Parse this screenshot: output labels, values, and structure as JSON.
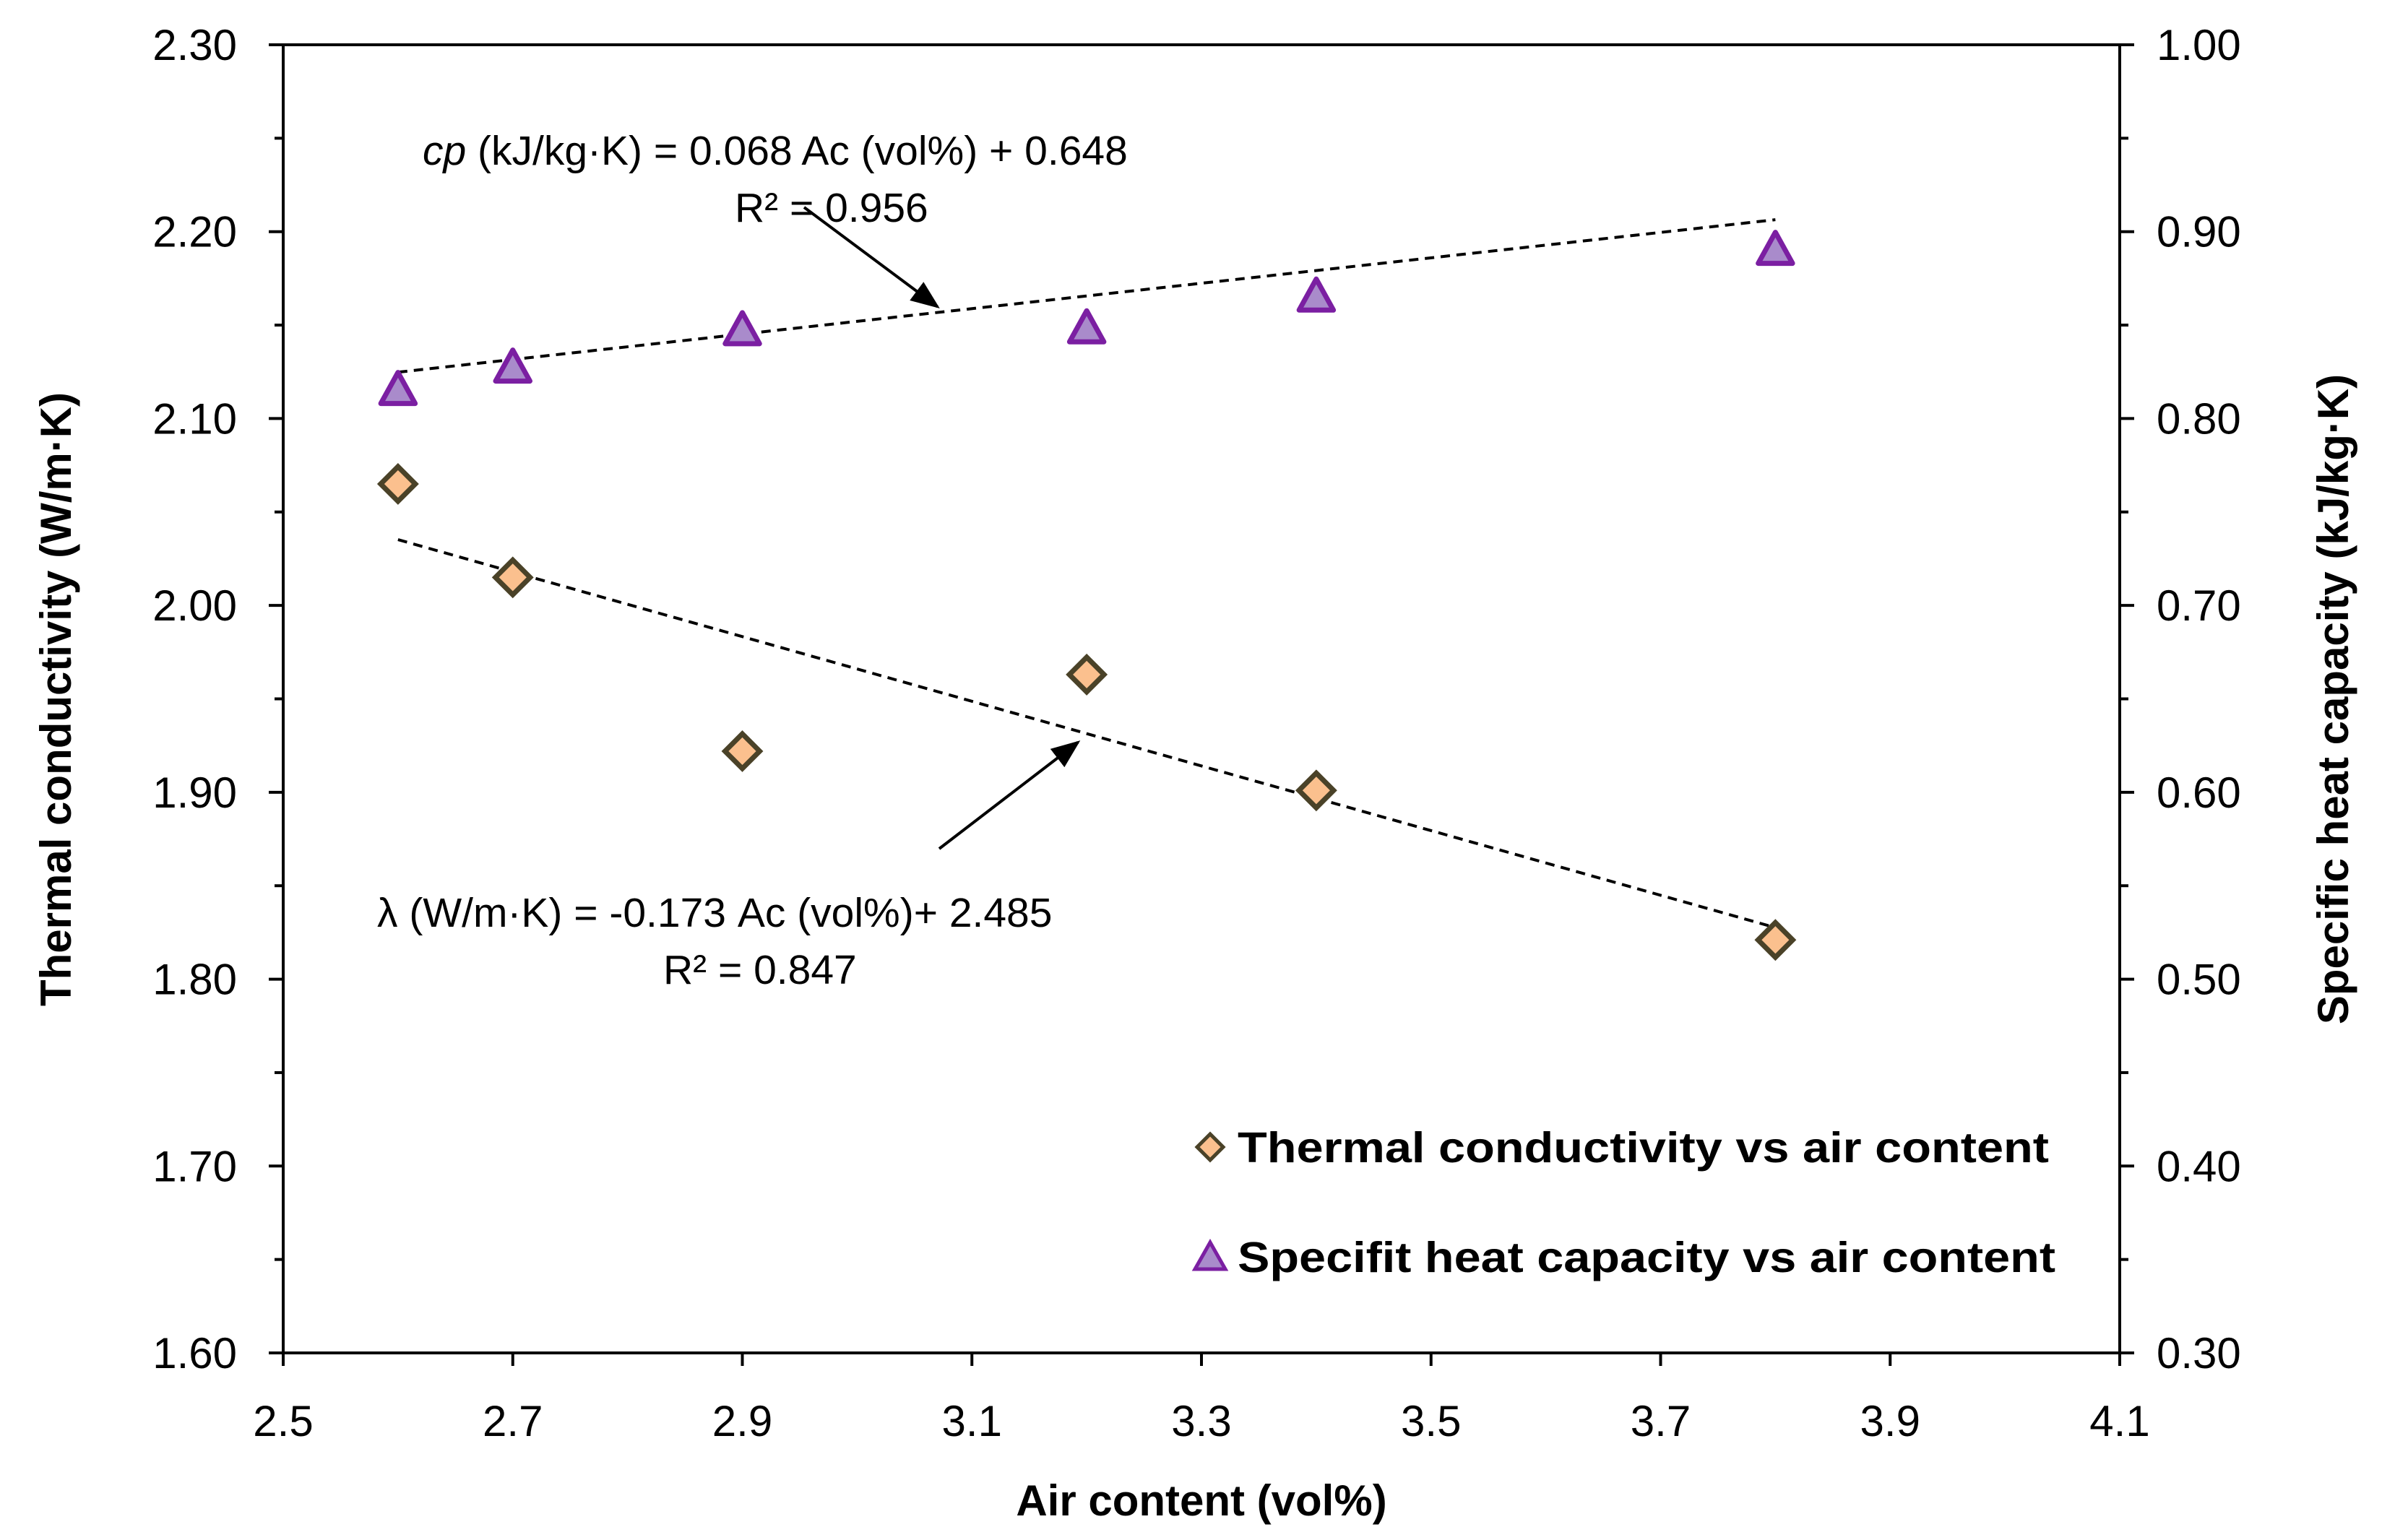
{
  "chart_data": {
    "type": "scatter",
    "xlabel": "Air content  (vol%)",
    "ylabel_left": "Thermal conductivity  (W/m·K)",
    "ylabel_right": "Specific heat capacity  (kJ/kg·K)",
    "xlim": [
      2.5,
      4.1
    ],
    "ylim_left": [
      1.6,
      2.3
    ],
    "ylim_right": [
      0.3,
      1.0
    ],
    "x_ticks": [
      "2.5",
      "2.7",
      "2.9",
      "3.1",
      "3.3",
      "3.5",
      "3.7",
      "3.9",
      "4.1"
    ],
    "y_ticks_left": [
      "1.60",
      "1.70",
      "1.80",
      "1.90",
      "2.00",
      "2.10",
      "2.20",
      "2.30"
    ],
    "y_ticks_right": [
      "0.30",
      "0.40",
      "0.50",
      "0.60",
      "0.70",
      "0.80",
      "0.90",
      "1.00"
    ],
    "series": [
      {
        "name": "Thermal conductivity  vs air content",
        "axis": "left",
        "marker": "diamond",
        "fill": "#FBC08E",
        "stroke": "#4A4228",
        "x": [
          2.6,
          2.7,
          2.9,
          3.2,
          3.4,
          3.8
        ],
        "y": [
          2.065,
          2.015,
          1.922,
          1.963,
          1.901,
          1.821
        ],
        "trend": {
          "slope": -0.173,
          "intercept": 2.485
        }
      },
      {
        "name": "Specifit heat capacity vs air content",
        "axis": "right",
        "marker": "triangle",
        "fill": "#A98BCB",
        "stroke": "#7B1FA2",
        "x": [
          2.6,
          2.7,
          2.9,
          3.2,
          3.4,
          3.8
        ],
        "y": [
          0.815,
          0.827,
          0.847,
          0.848,
          0.865,
          0.89
        ],
        "trend": {
          "slope": 0.068,
          "intercept": 0.648
        }
      }
    ],
    "annotations": {
      "cp_eq_var": "cp",
      "cp_eq_rest": " (kJ/kg·K)  = 0.068 Ac (vol%) + 0.648",
      "cp_r2": "R² = 0.956",
      "lambda_eq": "λ (W/m·K) = -0.173 Ac (vol%)+ 2.485",
      "lambda_r2": "R² = 0.847"
    }
  }
}
